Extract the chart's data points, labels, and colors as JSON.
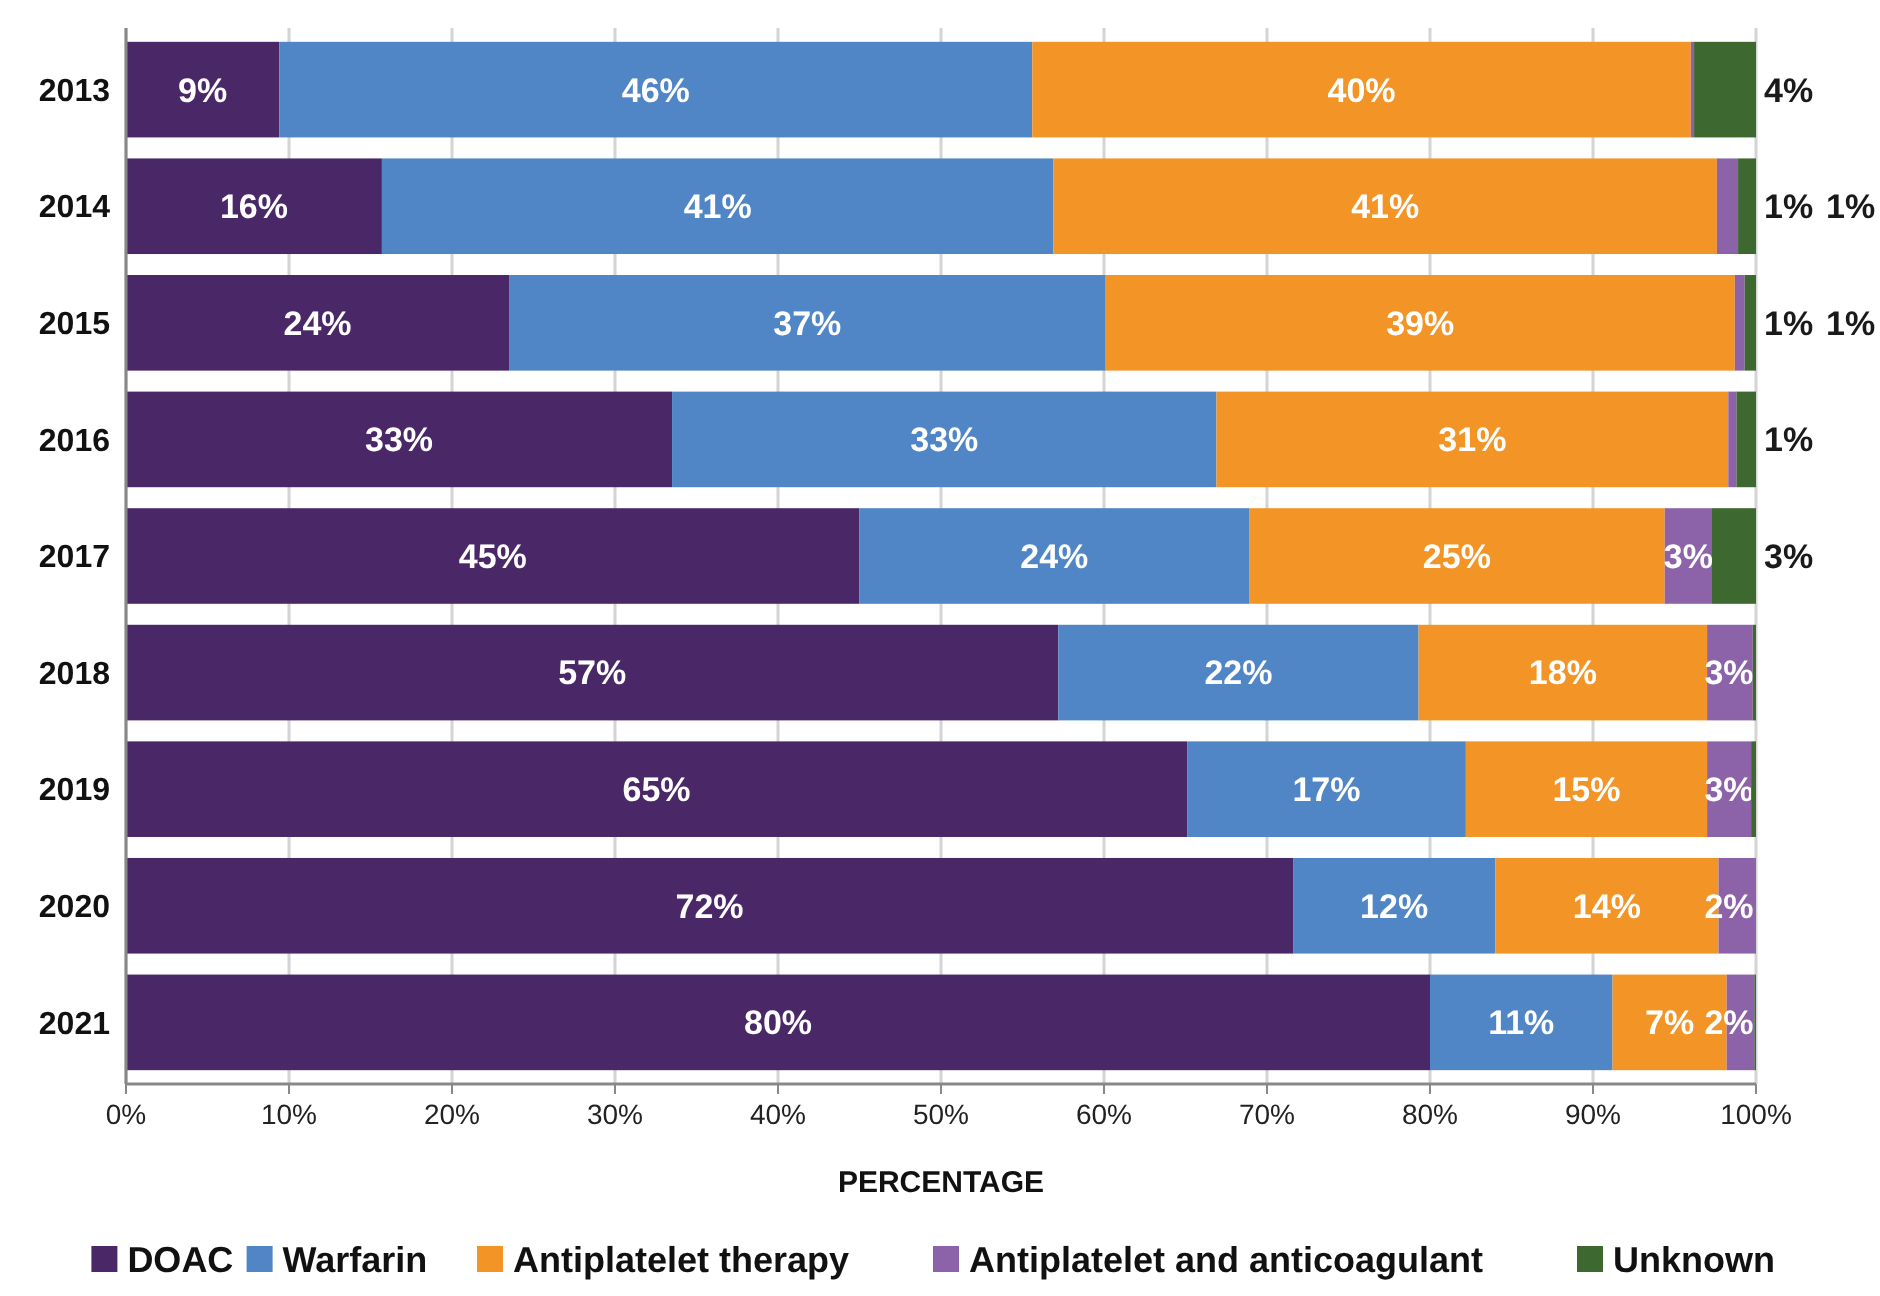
{
  "chart_data": {
    "type": "bar",
    "orientation": "horizontal",
    "stacked": true,
    "categories": [
      "2013",
      "2014",
      "2015",
      "2016",
      "2017",
      "2018",
      "2019",
      "2020",
      "2021"
    ],
    "series": [
      {
        "name": "DOAC",
        "color": "#4a2868",
        "values": [
          9.4,
          15.7,
          23.5,
          33.5,
          45.0,
          57.2,
          65.1,
          71.6,
          80.0
        ],
        "value_labels": [
          "9%",
          "16%",
          "24%",
          "33%",
          "45%",
          "57%",
          "65%",
          "72%",
          "80%"
        ]
      },
      {
        "name": "Warfarin",
        "color": "#5086c6",
        "values": [
          46.2,
          41.2,
          36.6,
          33.4,
          23.9,
          22.1,
          17.1,
          12.4,
          11.2
        ],
        "value_labels": [
          "46%",
          "41%",
          "37%",
          "33%",
          "24%",
          "22%",
          "17%",
          "12%",
          "11%"
        ]
      },
      {
        "name": "Antiplatelet therapy",
        "color": "#f39426",
        "values": [
          40.4,
          40.7,
          38.6,
          31.4,
          25.5,
          17.7,
          14.8,
          13.7,
          7.0
        ],
        "value_labels": [
          "40%",
          "41%",
          "39%",
          "31%",
          "25%",
          "18%",
          "15%",
          "14%",
          "7%"
        ]
      },
      {
        "name": "Antiplatelet and anticoagulant",
        "color": "#8c62a9",
        "values": [
          0.2,
          1.3,
          0.6,
          0.5,
          2.9,
          2.8,
          2.7,
          2.3,
          1.7
        ],
        "value_labels": [
          null,
          "1%",
          "1%",
          null,
          "3%",
          "3%",
          "3%",
          "2%",
          "2%"
        ]
      },
      {
        "name": "Unknown",
        "color": "#3d6830",
        "values": [
          3.8,
          1.1,
          0.7,
          1.2,
          2.7,
          0.2,
          0.3,
          0,
          0.1
        ],
        "value_labels": [
          "4%",
          "1%",
          "1%",
          "1%",
          "3%",
          null,
          null,
          null,
          null
        ]
      }
    ],
    "xlim": [
      0,
      100
    ],
    "xticks": [
      {
        "value": 0,
        "label": "0%"
      },
      {
        "value": 10,
        "label": "10%"
      },
      {
        "value": 20,
        "label": "20%"
      },
      {
        "value": 30,
        "label": "30%"
      },
      {
        "value": 40,
        "label": "40%"
      },
      {
        "value": 50,
        "label": "50%"
      },
      {
        "value": 60,
        "label": "60%"
      },
      {
        "value": 70,
        "label": "70%"
      },
      {
        "value": 80,
        "label": "80%"
      },
      {
        "value": 90,
        "label": "90%"
      },
      {
        "value": 100,
        "label": "100%"
      }
    ],
    "xlabel": "PERCENTAGE",
    "grid": "x",
    "legend": "bottom"
  }
}
